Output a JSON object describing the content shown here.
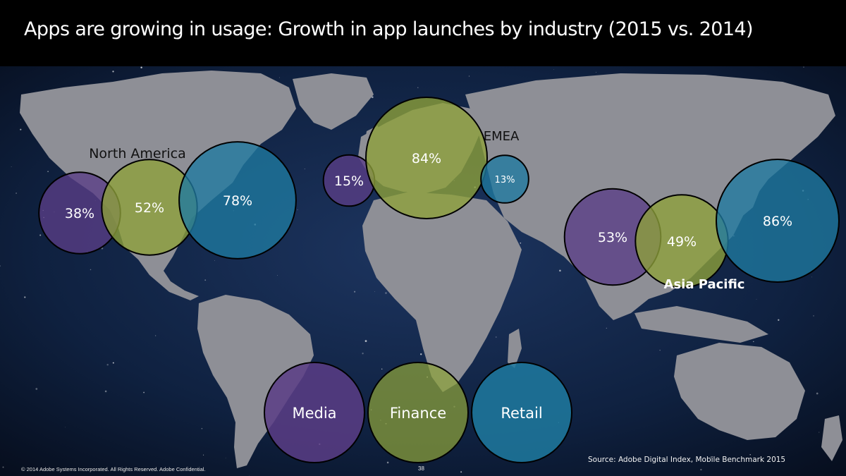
{
  "slide": {
    "title": "Apps are growing in usage:  Growth in app launches by industry (2015 vs. 2014)",
    "copyright": "© 2014 Adobe Systems Incorporated.  All Rights Reserved.  Adobe Confidential.",
    "page_number": "38",
    "source": "Source: Adobe Digital Index, Mobile Benchmark 2015"
  },
  "colors": {
    "media": "#5a3d86",
    "finance": "#8ea23a",
    "retail": "#1f7aa0",
    "land": "#8e8f96",
    "ocean": "#0b1830"
  },
  "chart_data": {
    "type": "bubble",
    "title": "Apps are growing in usage:  Growth in app launches by industry (2015 vs. 2014)",
    "unit": "%",
    "regions": [
      {
        "name": "North America",
        "values": [
          {
            "industry": "Media",
            "label": "38%",
            "value": 38
          },
          {
            "industry": "Finance",
            "label": "52%",
            "value": 52
          },
          {
            "industry": "Retail",
            "label": "78%",
            "value": 78
          }
        ]
      },
      {
        "name": "EMEA",
        "values": [
          {
            "industry": "Media",
            "label": "15%",
            "value": 15
          },
          {
            "industry": "Finance",
            "label": "84%",
            "value": 84
          },
          {
            "industry": "Retail",
            "label": "13%",
            "value": 13
          }
        ]
      },
      {
        "name": "Asia Pacific",
        "values": [
          {
            "industry": "Media",
            "label": "53%",
            "value": 53
          },
          {
            "industry": "Finance",
            "label": "49%",
            "value": 49
          },
          {
            "industry": "Retail",
            "label": "86%",
            "value": 86
          }
        ]
      }
    ],
    "legend": [
      "Media",
      "Finance",
      "Retail"
    ]
  }
}
